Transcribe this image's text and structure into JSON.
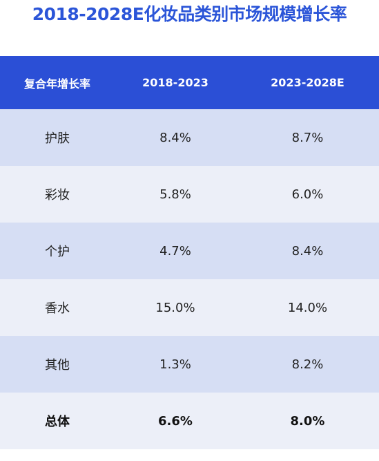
{
  "title": "2018-2028E化妆品类别市场规模增长率",
  "chart_data": {
    "type": "table",
    "title": "2018-2028E化妆品类别市场规模增长率",
    "columns": [
      "复合年增长率",
      "2018-2023",
      "2023-2028E"
    ],
    "rows": [
      [
        "护肤",
        "8.4%",
        "8.7%"
      ],
      [
        "彩妆",
        "5.8%",
        "6.0%"
      ],
      [
        "个护",
        "4.7%",
        "8.4%"
      ],
      [
        "香水",
        "15.0%",
        "14.0%"
      ],
      [
        "其他",
        "1.3%",
        "8.2%"
      ],
      [
        "总体",
        "6.6%",
        "8.0%"
      ]
    ],
    "values": {
      "2018-2023": [
        8.4,
        5.8,
        4.7,
        15.0,
        1.3,
        6.6
      ],
      "2023-2028E": [
        8.7,
        6.0,
        8.4,
        14.0,
        8.2,
        8.0
      ]
    }
  },
  "colors": {
    "title": "#2b55d8",
    "header_bg": "#2b4fd6",
    "row_dark": "#d6def4",
    "row_light": "#eceff8"
  }
}
